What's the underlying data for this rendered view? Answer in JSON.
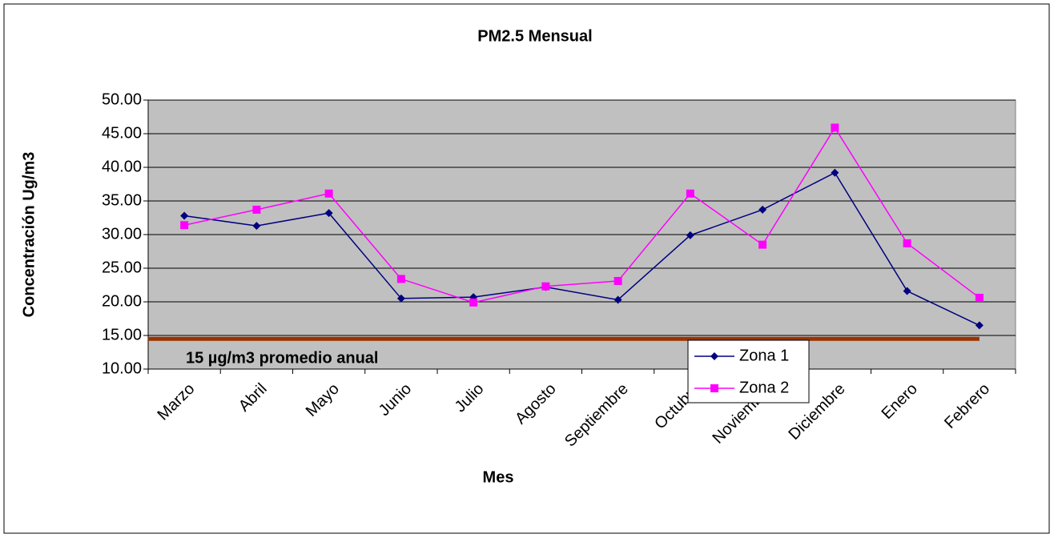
{
  "chart_data": {
    "type": "line",
    "title": "PM2.5 Mensual",
    "x_label": "Mes",
    "y_label": "Concentración Ug/m3",
    "categories": [
      "Marzo",
      "Abril",
      "Mayo",
      "Junio",
      "Julio",
      "Agosto",
      "Septiembre",
      "Octubre",
      "Noviembre",
      "Diciembre",
      "Enero",
      "Febrero"
    ],
    "series": [
      {
        "name": "Zona 1",
        "color": "#000080",
        "marker": "diamond",
        "values": [
          32.8,
          31.3,
          33.2,
          20.5,
          20.7,
          22.2,
          20.3,
          29.9,
          33.7,
          39.2,
          21.6,
          16.5
        ]
      },
      {
        "name": "Zona 2",
        "color": "#ff00ff",
        "marker": "square",
        "values": [
          31.4,
          33.7,
          36.1,
          23.4,
          19.9,
          22.3,
          23.1,
          36.1,
          28.5,
          45.9,
          28.7,
          20.6
        ]
      }
    ],
    "ylim": [
      10,
      50
    ],
    "yticks": [
      {
        "value": 10,
        "label": "10.00"
      },
      {
        "value": 15,
        "label": "15.00"
      },
      {
        "value": 20,
        "label": "20.00"
      },
      {
        "value": 25,
        "label": "25.00"
      },
      {
        "value": 30,
        "label": "30.00"
      },
      {
        "value": 35,
        "label": "35.00"
      },
      {
        "value": 40,
        "label": "40.00"
      },
      {
        "value": 45,
        "label": "45.00"
      },
      {
        "value": 50,
        "label": "50.00"
      }
    ],
    "grid": true,
    "plot_background": "#c0c0c0",
    "reference_line": {
      "value": 14.5,
      "color": "#993300",
      "label": "15 µg/m3 promedio anual"
    },
    "legend": "lower-center"
  }
}
